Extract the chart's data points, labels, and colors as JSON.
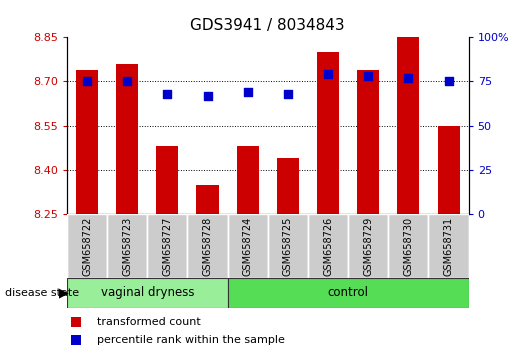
{
  "title": "GDS3941 / 8034843",
  "samples": [
    "GSM658722",
    "GSM658723",
    "GSM658727",
    "GSM658728",
    "GSM658724",
    "GSM658725",
    "GSM658726",
    "GSM658729",
    "GSM658730",
    "GSM658731"
  ],
  "bar_values": [
    8.74,
    8.76,
    8.48,
    8.35,
    8.48,
    8.44,
    8.8,
    8.74,
    8.85,
    8.55
  ],
  "bar_bottom": 8.25,
  "percentile_values": [
    75,
    75,
    68,
    67,
    69,
    68,
    79,
    78,
    77,
    75
  ],
  "ylim_left": [
    8.25,
    8.85
  ],
  "ylim_right": [
    0,
    100
  ],
  "yticks_left": [
    8.25,
    8.4,
    8.55,
    8.7,
    8.85
  ],
  "yticks_right": [
    0,
    25,
    50,
    75,
    100
  ],
  "bar_color": "#cc0000",
  "dot_color": "#0000cc",
  "group1_label": "vaginal dryness",
  "group2_label": "control",
  "group1_count": 4,
  "group2_count": 6,
  "group1_color": "#99ee99",
  "group2_color": "#55dd55",
  "disease_label": "disease state",
  "legend_bar_label": "transformed count",
  "legend_dot_label": "percentile rank within the sample",
  "bar_color_legend": "#cc0000",
  "dot_color_legend": "#0000cc",
  "bar_width": 0.55,
  "dot_size": 40,
  "label_bg": "#cccccc",
  "tick_color_left": "#cc0000",
  "tick_color_right": "#0000cc",
  "title_fontsize": 11,
  "axis_fontsize": 8,
  "label_fontsize": 7,
  "group_fontsize": 8.5,
  "legend_fontsize": 8
}
